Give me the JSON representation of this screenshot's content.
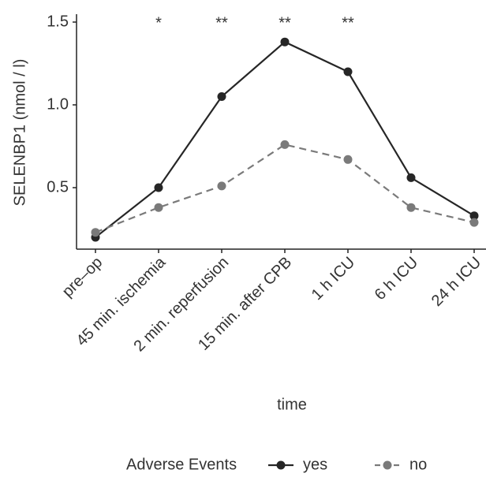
{
  "chart_data": {
    "type": "line",
    "x_label": "time",
    "y_label": "SELENBP1 (nmol / l)",
    "categories": [
      "pre–op",
      "45 min. ischemia",
      "2 min. reperfusion",
      "15 min. after CPB",
      "1 h ICU",
      "6 h ICU",
      "24 h ICU"
    ],
    "series": [
      {
        "name": "yes",
        "color": "#262626",
        "dash": false,
        "values": [
          0.2,
          0.5,
          1.05,
          1.38,
          1.2,
          0.56,
          0.33
        ]
      },
      {
        "name": "no",
        "color": "#7a7a7a",
        "dash": true,
        "values": [
          0.23,
          0.38,
          0.51,
          0.76,
          0.67,
          0.38,
          0.29
        ]
      }
    ],
    "significance": [
      null,
      "*",
      "**",
      "**",
      "**",
      null,
      null
    ],
    "legend_title": "Adverse Events",
    "legend": "bottom",
    "ylim": [
      0.13,
      1.54
    ],
    "yticks": [
      {
        "value": 0.5,
        "label": "0.5"
      },
      {
        "value": 1,
        "label": "1.0"
      },
      {
        "value": 1.5,
        "label": "1.5"
      }
    ]
  }
}
